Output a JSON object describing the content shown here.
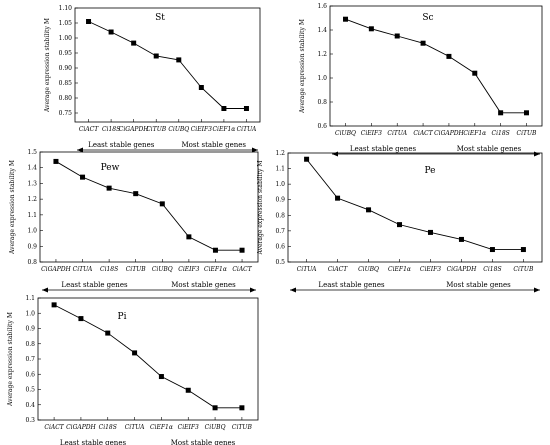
{
  "arrow_labels": {
    "left": "Least stable genes",
    "right": "Most stable genes"
  },
  "chart_data": [
    {
      "type": "line",
      "title": "St",
      "ylabel": "Average expression stability M",
      "ylim": [
        0.72,
        1.1
      ],
      "yticks": [
        0.75,
        0.8,
        0.85,
        0.9,
        0.95,
        1.0,
        1.05,
        1.1
      ],
      "ytick_labels": [
        "0.75",
        "0.80",
        "0.85",
        "0.90",
        "0.95",
        "1.00",
        "1.05",
        "1.10"
      ],
      "categories": [
        "CiACT",
        "Ci18S",
        "CiGAPDH",
        "CiTUB",
        "CiUBQ",
        "CiEIF3",
        "CiEF1α",
        "CiTUA"
      ],
      "values": [
        1.055,
        1.02,
        0.983,
        0.94,
        0.927,
        0.835,
        0.765,
        0.765
      ],
      "grid": false,
      "marker": "square"
    },
    {
      "type": "line",
      "title": "Sc",
      "ylabel": "Average expression stability M",
      "ylim": [
        0.6,
        1.6
      ],
      "yticks": [
        0.6,
        0.8,
        1.0,
        1.2,
        1.4,
        1.6
      ],
      "ytick_labels": [
        "0.6",
        "0.8",
        "1.0",
        "1.2",
        "1.4",
        "1.6"
      ],
      "categories": [
        "CiUBQ",
        "CiEIF3",
        "CiTUA",
        "CiACT",
        "CiGAPDH",
        "CiEF1α",
        "Ci18S",
        "CiTUB"
      ],
      "values": [
        1.49,
        1.41,
        1.35,
        1.29,
        1.18,
        1.04,
        0.71,
        0.71
      ],
      "grid": false,
      "marker": "square"
    },
    {
      "type": "line",
      "title": "Pew",
      "ylabel": "Average expression stability M",
      "ylim": [
        0.8,
        1.5
      ],
      "yticks": [
        0.8,
        0.9,
        1.0,
        1.1,
        1.2,
        1.3,
        1.4,
        1.5
      ],
      "ytick_labels": [
        "0.8",
        "0.9",
        "1.0",
        "1.1",
        "1.2",
        "1.3",
        "1.4",
        "1.5"
      ],
      "categories": [
        "CiGAPDH",
        "CiTUA",
        "Ci18S",
        "CiTUB",
        "CiUBQ",
        "CiEIF3",
        "CiEF1α",
        "CiACT"
      ],
      "values": [
        1.44,
        1.34,
        1.27,
        1.235,
        1.17,
        0.96,
        0.875,
        0.875
      ],
      "grid": false,
      "marker": "square"
    },
    {
      "type": "line",
      "title": "Pe",
      "ylabel": "Average expression stability M",
      "ylim": [
        0.5,
        1.2
      ],
      "yticks": [
        0.5,
        0.6,
        0.7,
        0.8,
        0.9,
        1.0,
        1.1,
        1.2
      ],
      "ytick_labels": [
        "0.5",
        "0.6",
        "0.7",
        "0.8",
        "0.9",
        "1.0",
        "1.1",
        "1.2"
      ],
      "categories": [
        "CiTUA",
        "CiACT",
        "CiUBQ",
        "CiEF1α",
        "CiEIF3",
        "CiGAPDH",
        "Ci18S",
        "CiTUB"
      ],
      "values": [
        1.16,
        0.91,
        0.835,
        0.74,
        0.69,
        0.645,
        0.58,
        0.58
      ],
      "grid": false,
      "marker": "square"
    },
    {
      "type": "line",
      "title": "Pi",
      "ylabel": "Average expression stability M",
      "ylim": [
        0.3,
        1.1
      ],
      "yticks": [
        0.3,
        0.4,
        0.5,
        0.6,
        0.7,
        0.8,
        0.9,
        1.0,
        1.1
      ],
      "ytick_labels": [
        "0.3",
        "0.4",
        "0.5",
        "0.6",
        "0.7",
        "0.8",
        "0.9",
        "1.0",
        "1.1"
      ],
      "categories": [
        "CiACT",
        "CiGAPDH",
        "Ci18S",
        "CiTUA",
        "CiEF1α",
        "CiEIF3",
        "CiUBQ",
        "CiTUB"
      ],
      "values": [
        1.055,
        0.965,
        0.87,
        0.74,
        0.585,
        0.495,
        0.38,
        0.38
      ],
      "grid": false,
      "marker": "square"
    }
  ]
}
